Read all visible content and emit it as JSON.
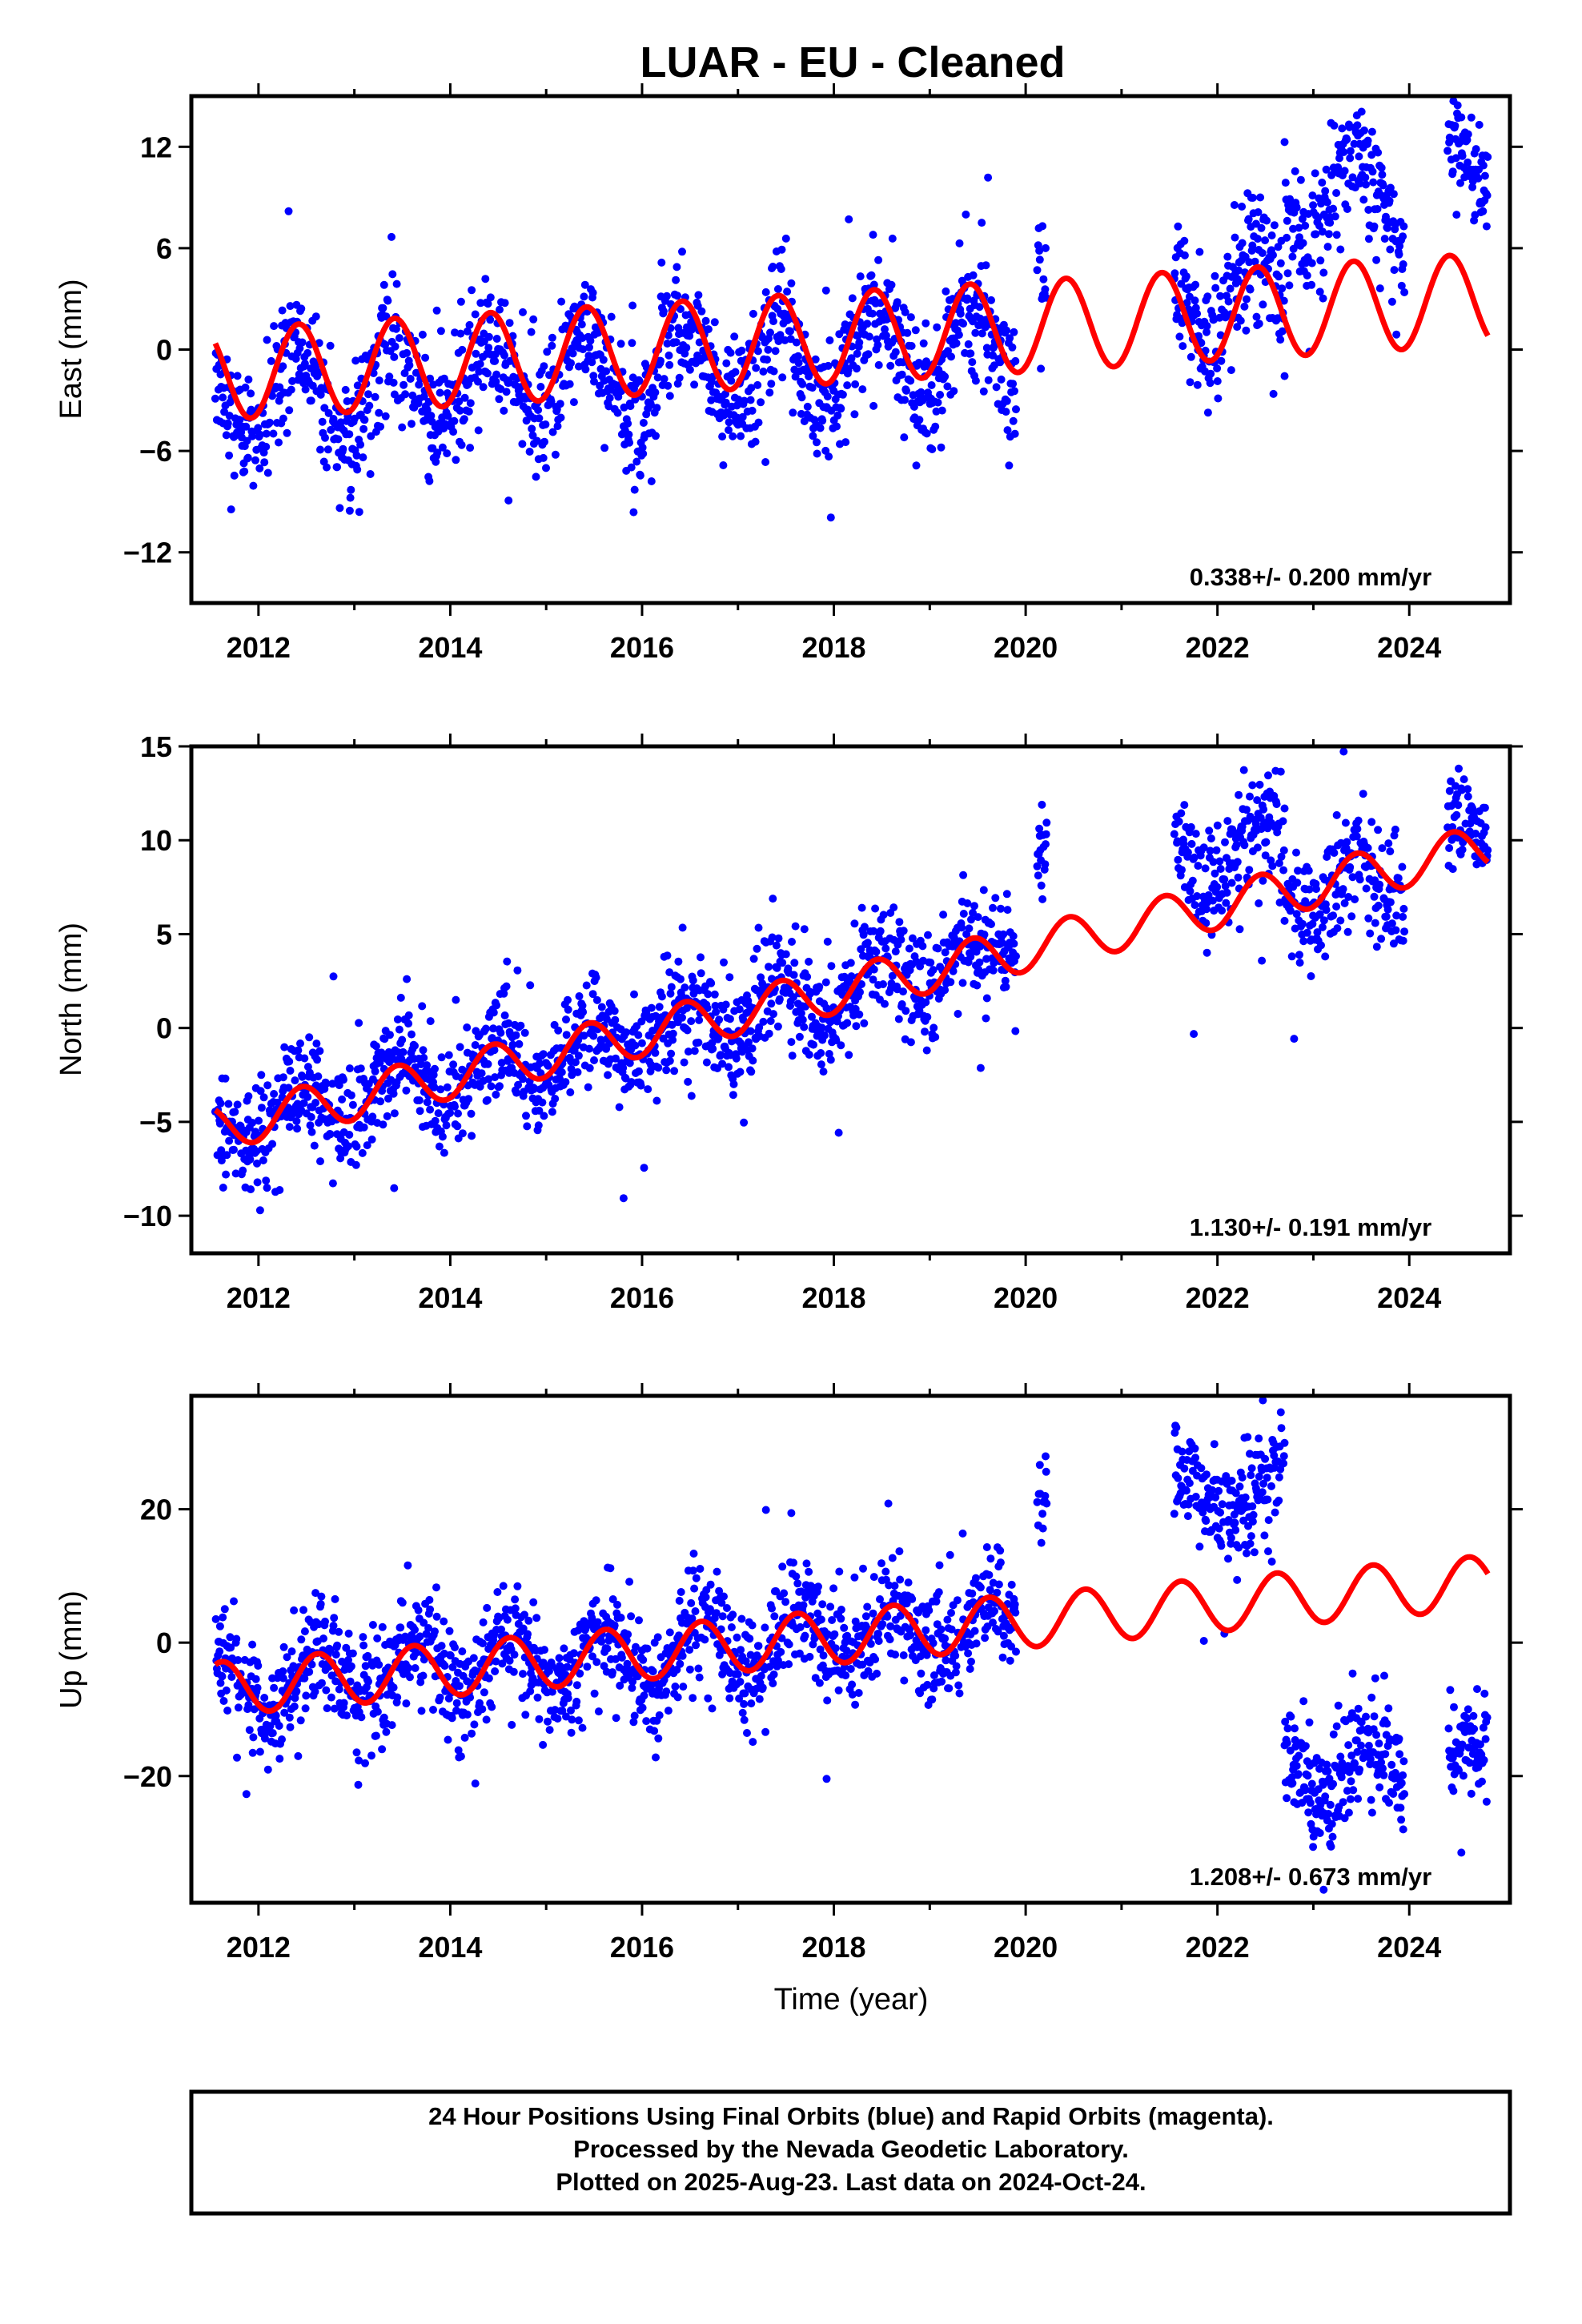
{
  "title": "LUAR  - EU - Cleaned",
  "footer": {
    "lines": [
      "24 Hour Positions Using Final Orbits (blue) and Rapid Orbits (magenta).",
      "Processed by the Nevada Geodetic Laboratory.",
      "Plotted on 2025-Aug-23. Last data on 2024-Oct-24."
    ]
  },
  "colors": {
    "data_points": "#0000ff",
    "model_curve": "#ff0000",
    "frame": "#000000",
    "background": "#ffffff"
  },
  "chart_data": [
    {
      "type": "scatter",
      "ylabel": "East (mm)",
      "xlabel": "",
      "rate_label": "0.338+/- 0.200 mm/yr",
      "xlim": [
        2011.3,
        2025.05
      ],
      "ylim": [
        -15,
        15
      ],
      "x_ticks": [
        "2012",
        "2014",
        "2016",
        "2018",
        "2020",
        "2022",
        "2024"
      ],
      "y_ticks": [
        "12",
        "6",
        "0",
        "−6",
        "−12"
      ],
      "grid": false,
      "model": {
        "trend_mm_per_yr": 0.338,
        "offset_at_2011_5": -1.5,
        "annual_amplitude": 2.7,
        "peak_year_fraction": 0.42
      },
      "data_segments": [
        {
          "start": 2011.55,
          "end": 2019.9,
          "offset": -1.3,
          "amplitude": 2.7,
          "noise": 1.9
        },
        {
          "start": 2020.12,
          "end": 2020.22,
          "offset": 3.2,
          "amplitude": 0.0,
          "noise": 1.3
        },
        {
          "start": 2021.55,
          "end": 2022.7,
          "offset": 0.6,
          "amplitude": 2.9,
          "noise": 2.0
        },
        {
          "start": 2022.7,
          "end": 2023.95,
          "offset": 6.5,
          "amplitude": 2.6,
          "noise": 2.0
        },
        {
          "start": 2024.4,
          "end": 2024.82,
          "offset": 8.2,
          "amplitude": 2.0,
          "noise": 1.6
        }
      ]
    },
    {
      "type": "scatter",
      "ylabel": "North (mm)",
      "xlabel": "",
      "rate_label": "1.130+/- 0.191 mm/yr",
      "xlim": [
        2011.3,
        2025.05
      ],
      "ylim": [
        -12,
        15
      ],
      "x_ticks": [
        "2012",
        "2014",
        "2016",
        "2018",
        "2020",
        "2022",
        "2024"
      ],
      "y_ticks": [
        "15",
        "10",
        "5",
        "0",
        "−5",
        "−10"
      ],
      "grid": false,
      "model": {
        "trend_mm_per_yr": 1.13,
        "offset_at_2011_5": -5.4,
        "annual_amplitude": 1.2,
        "peak_year_fraction": 0.45
      },
      "data_segments": [
        {
          "start": 2011.55,
          "end": 2019.9,
          "offset": 0.0,
          "amplitude": 1.3,
          "noise": 1.4
        },
        {
          "start": 2020.12,
          "end": 2020.22,
          "offset": 5.0,
          "amplitude": 0.0,
          "noise": 1.0
        },
        {
          "start": 2021.55,
          "end": 2022.7,
          "offset": 2.5,
          "amplitude": 1.2,
          "noise": 1.5
        },
        {
          "start": 2022.7,
          "end": 2023.95,
          "offset": -0.6,
          "amplitude": 1.3,
          "noise": 1.5
        },
        {
          "start": 2024.4,
          "end": 2024.82,
          "offset": 1.1,
          "amplitude": 1.2,
          "noise": 1.2
        }
      ]
    },
    {
      "type": "scatter",
      "ylabel": "Up (mm)",
      "xlabel": "Time (year)",
      "rate_label": "1.208+/- 0.673 mm/yr",
      "xlim": [
        2011.3,
        2025.05
      ],
      "ylim": [
        -39,
        37
      ],
      "x_ticks": [
        "2012",
        "2014",
        "2016",
        "2018",
        "2020",
        "2022",
        "2024"
      ],
      "y_ticks": [
        "20",
        "0",
        "−20"
      ],
      "grid": false,
      "model": {
        "trend_mm_per_yr": 1.208,
        "offset_at_2011_5": -7.0,
        "annual_amplitude": 4.0,
        "peak_year_fraction": 0.62
      },
      "data_segments": [
        {
          "start": 2011.55,
          "end": 2019.9,
          "offset": 0.0,
          "amplitude": 4.5,
          "noise": 4.2
        },
        {
          "start": 2020.12,
          "end": 2020.22,
          "offset": 19.0,
          "amplitude": 0.0,
          "noise": 3.0
        },
        {
          "start": 2021.55,
          "end": 2022.7,
          "offset": 16.5,
          "amplitude": 4.0,
          "noise": 4.0
        },
        {
          "start": 2022.7,
          "end": 2023.95,
          "offset": -26.0,
          "amplitude": 4.0,
          "noise": 4.0
        },
        {
          "start": 2024.4,
          "end": 2024.82,
          "offset": -27.0,
          "amplitude": 3.5,
          "noise": 3.5
        }
      ]
    }
  ]
}
